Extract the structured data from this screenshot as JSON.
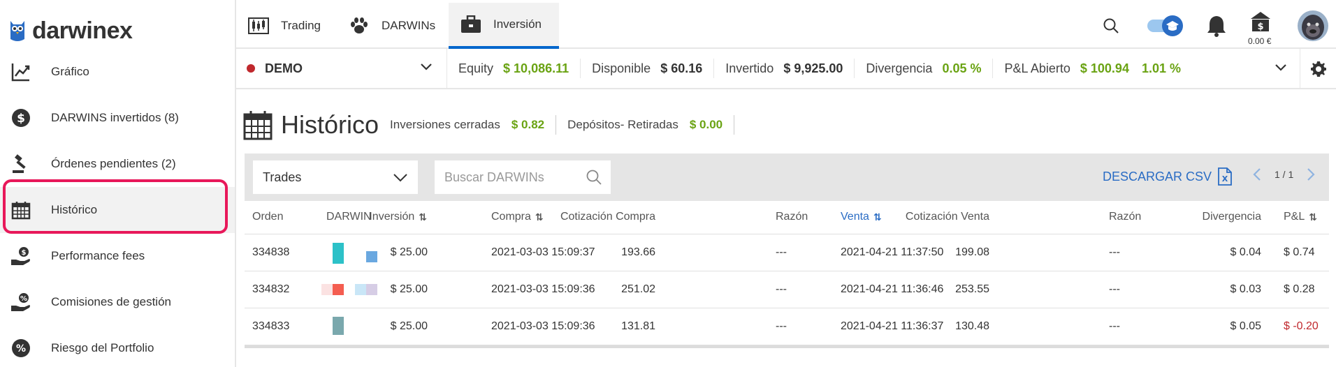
{
  "brand": {
    "name": "darwinex"
  },
  "sidebar": {
    "items": [
      {
        "label": "Gráfico",
        "icon": "chart-line-icon"
      },
      {
        "label": "DARWINS invertidos (8)",
        "icon": "dollar-circle-icon"
      },
      {
        "label": "Órdenes pendientes (2)",
        "icon": "gavel-icon"
      },
      {
        "label": "Histórico",
        "icon": "calendar-icon",
        "active": true
      },
      {
        "label": "Performance fees",
        "icon": "hand-coin-icon"
      },
      {
        "label": "Comisiones de gestión",
        "icon": "hand-percent-icon"
      },
      {
        "label": "Riesgo del Portfolio",
        "icon": "percent-circle-icon"
      }
    ]
  },
  "topnav": {
    "tabs": [
      {
        "label": "Trading",
        "icon": "candlestick-icon"
      },
      {
        "label": "DARWINs",
        "icon": "paw-icon"
      },
      {
        "label": "Inversión",
        "icon": "briefcase-icon",
        "active": true
      }
    ],
    "balance": "0.00 €"
  },
  "account": {
    "name": "DEMO",
    "stats": [
      {
        "label": "Equity",
        "value": "$ 10,086.11",
        "color": "green"
      },
      {
        "label": "Disponible",
        "value": "$ 60.16",
        "color": "dark"
      },
      {
        "label": "Invertido",
        "value": "$ 9,925.00",
        "color": "dark"
      },
      {
        "label": "Divergencia",
        "value": "0.05 %",
        "color": "green"
      }
    ],
    "pl": {
      "label": "P&L Abierto",
      "value": "$ 100.94",
      "percent": "1.01 %"
    }
  },
  "history": {
    "title": "Histórico",
    "closed_label": "Inversiones cerradas",
    "closed_value": "$ 0.82",
    "deposits_label": "Depósitos- Retiradas",
    "deposits_value": "$ 0.00"
  },
  "filters": {
    "type_selected": "Trades",
    "search_placeholder": "Buscar DARWINs",
    "csv_label": "DESCARGAR CSV",
    "page": "1 / 1"
  },
  "table": {
    "columns": [
      "Orden",
      "DARWIN",
      "Inversión",
      "Compra",
      "Cotización Compra",
      "Razón",
      "Venta",
      "Cotización Venta",
      "Razón",
      "Divergencia",
      "P&L"
    ],
    "sort_glyph": "⇅",
    "rows": [
      {
        "orden": "334838",
        "inversion": "$ 25.00",
        "compra": "2021-03-03 15:09:37",
        "cot_compra": "193.66",
        "razon1": "---",
        "venta": "2021-04-21 11:37:50",
        "cot_venta": "199.08",
        "razon2": "---",
        "divergencia": "$ 0.04",
        "pl": "$ 0.74",
        "pl_positive": true
      },
      {
        "orden": "334832",
        "inversion": "$ 25.00",
        "compra": "2021-03-03 15:09:36",
        "cot_compra": "251.02",
        "razon1": "---",
        "venta": "2021-04-21 11:36:46",
        "cot_venta": "253.55",
        "razon2": "---",
        "divergencia": "$ 0.03",
        "pl": "$ 0.28",
        "pl_positive": true
      },
      {
        "orden": "334833",
        "inversion": "$ 25.00",
        "compra": "2021-03-03 15:09:36",
        "cot_compra": "131.81",
        "razon1": "---",
        "venta": "2021-04-21 11:36:37",
        "cot_venta": "130.48",
        "razon2": "---",
        "divergencia": "$ 0.05",
        "pl": "$ -0.20",
        "pl_positive": false
      }
    ]
  },
  "colors": {
    "accent": "#0066cc",
    "green": "#6aa313",
    "red": "#c0282d",
    "highlight": "#e8185a"
  }
}
